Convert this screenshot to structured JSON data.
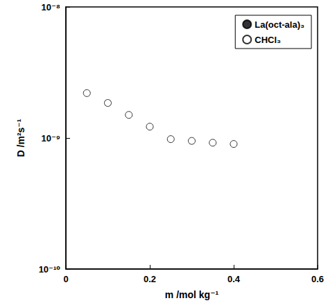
{
  "chart_data": {
    "type": "scatter",
    "x_label": "m /mol kg⁻¹",
    "y_label": "D /m²s⁻¹",
    "log": "y",
    "grid": false,
    "legend": "top-right",
    "xlim": [
      0,
      0.6
    ],
    "xticks": [
      0,
      0.2,
      0.4,
      0.6
    ],
    "ylim": [
      1e-10,
      1e-08
    ],
    "yticks": [
      {
        "value": 1e-10,
        "label": "10⁻¹⁰"
      },
      {
        "value": 1e-09,
        "label": "10⁻⁹"
      },
      {
        "value": 1e-08,
        "label": "10⁻⁸"
      }
    ],
    "x": [
      0.05,
      0.1,
      0.15,
      0.2,
      0.25,
      0.3,
      0.35,
      0.4
    ],
    "series": [
      {
        "name": "La(oct-ala)₃",
        "color": "#000000",
        "marker": "filled",
        "values": [
          null,
          null,
          null,
          null,
          null,
          null,
          null,
          null
        ]
      },
      {
        "name": "CHCl₃",
        "color": "#000000",
        "marker": "open",
        "values": [
          2.2e-09,
          1.85e-09,
          1.5e-09,
          1.22e-09,
          9.8e-10,
          9.5e-10,
          9.2e-10,
          9e-10
        ]
      }
    ]
  }
}
